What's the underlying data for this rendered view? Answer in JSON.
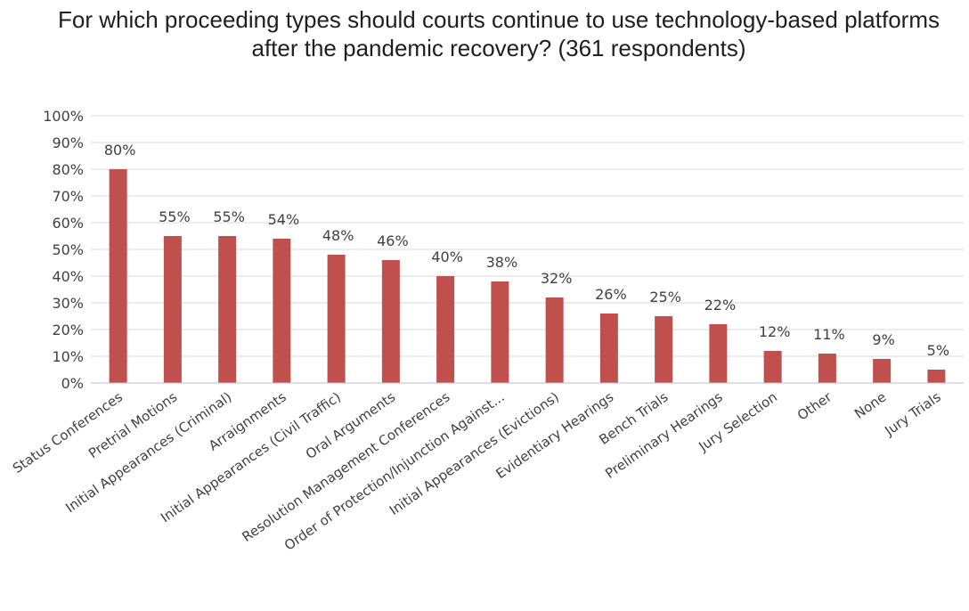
{
  "chart_data": {
    "type": "bar",
    "title": "For which proceeding types should courts continue to use technology-based platforms after the pandemic recovery?  (361 respondents)",
    "xlabel": "",
    "ylabel": "",
    "ylim": [
      0,
      100
    ],
    "y_tick_values": [
      0,
      10,
      20,
      30,
      40,
      50,
      60,
      70,
      80,
      90,
      100
    ],
    "y_tick_labels": [
      "0%",
      "10%",
      "20%",
      "30%",
      "40%",
      "50%",
      "60%",
      "70%",
      "80%",
      "90%",
      "100%"
    ],
    "grid": true,
    "legend": "none",
    "bar_color": "#c0504d",
    "categories": [
      "Status Conferences",
      "Pretrial Motions",
      "Initial Appearances (Criminal)",
      "Arraignments",
      "Initial Appearances (Civil Traffic)",
      "Oral Arguments",
      "Resolution Management Conferences",
      "Order of Protection/Injunction Against...",
      "Initial Appearances (Evictions)",
      "Evidentiary Hearings",
      "Bench Trials",
      "Preliminary Hearings",
      "Jury Selection",
      "Other",
      "None",
      "Jury Trials"
    ],
    "values": [
      80,
      55,
      55,
      54,
      48,
      46,
      40,
      38,
      32,
      26,
      25,
      22,
      12,
      11,
      9,
      5
    ],
    "data_labels": [
      "80%",
      "55%",
      "55%",
      "54%",
      "48%",
      "46%",
      "40%",
      "38%",
      "32%",
      "26%",
      "25%",
      "22%",
      "12%",
      "11%",
      "9%",
      "5%"
    ]
  }
}
